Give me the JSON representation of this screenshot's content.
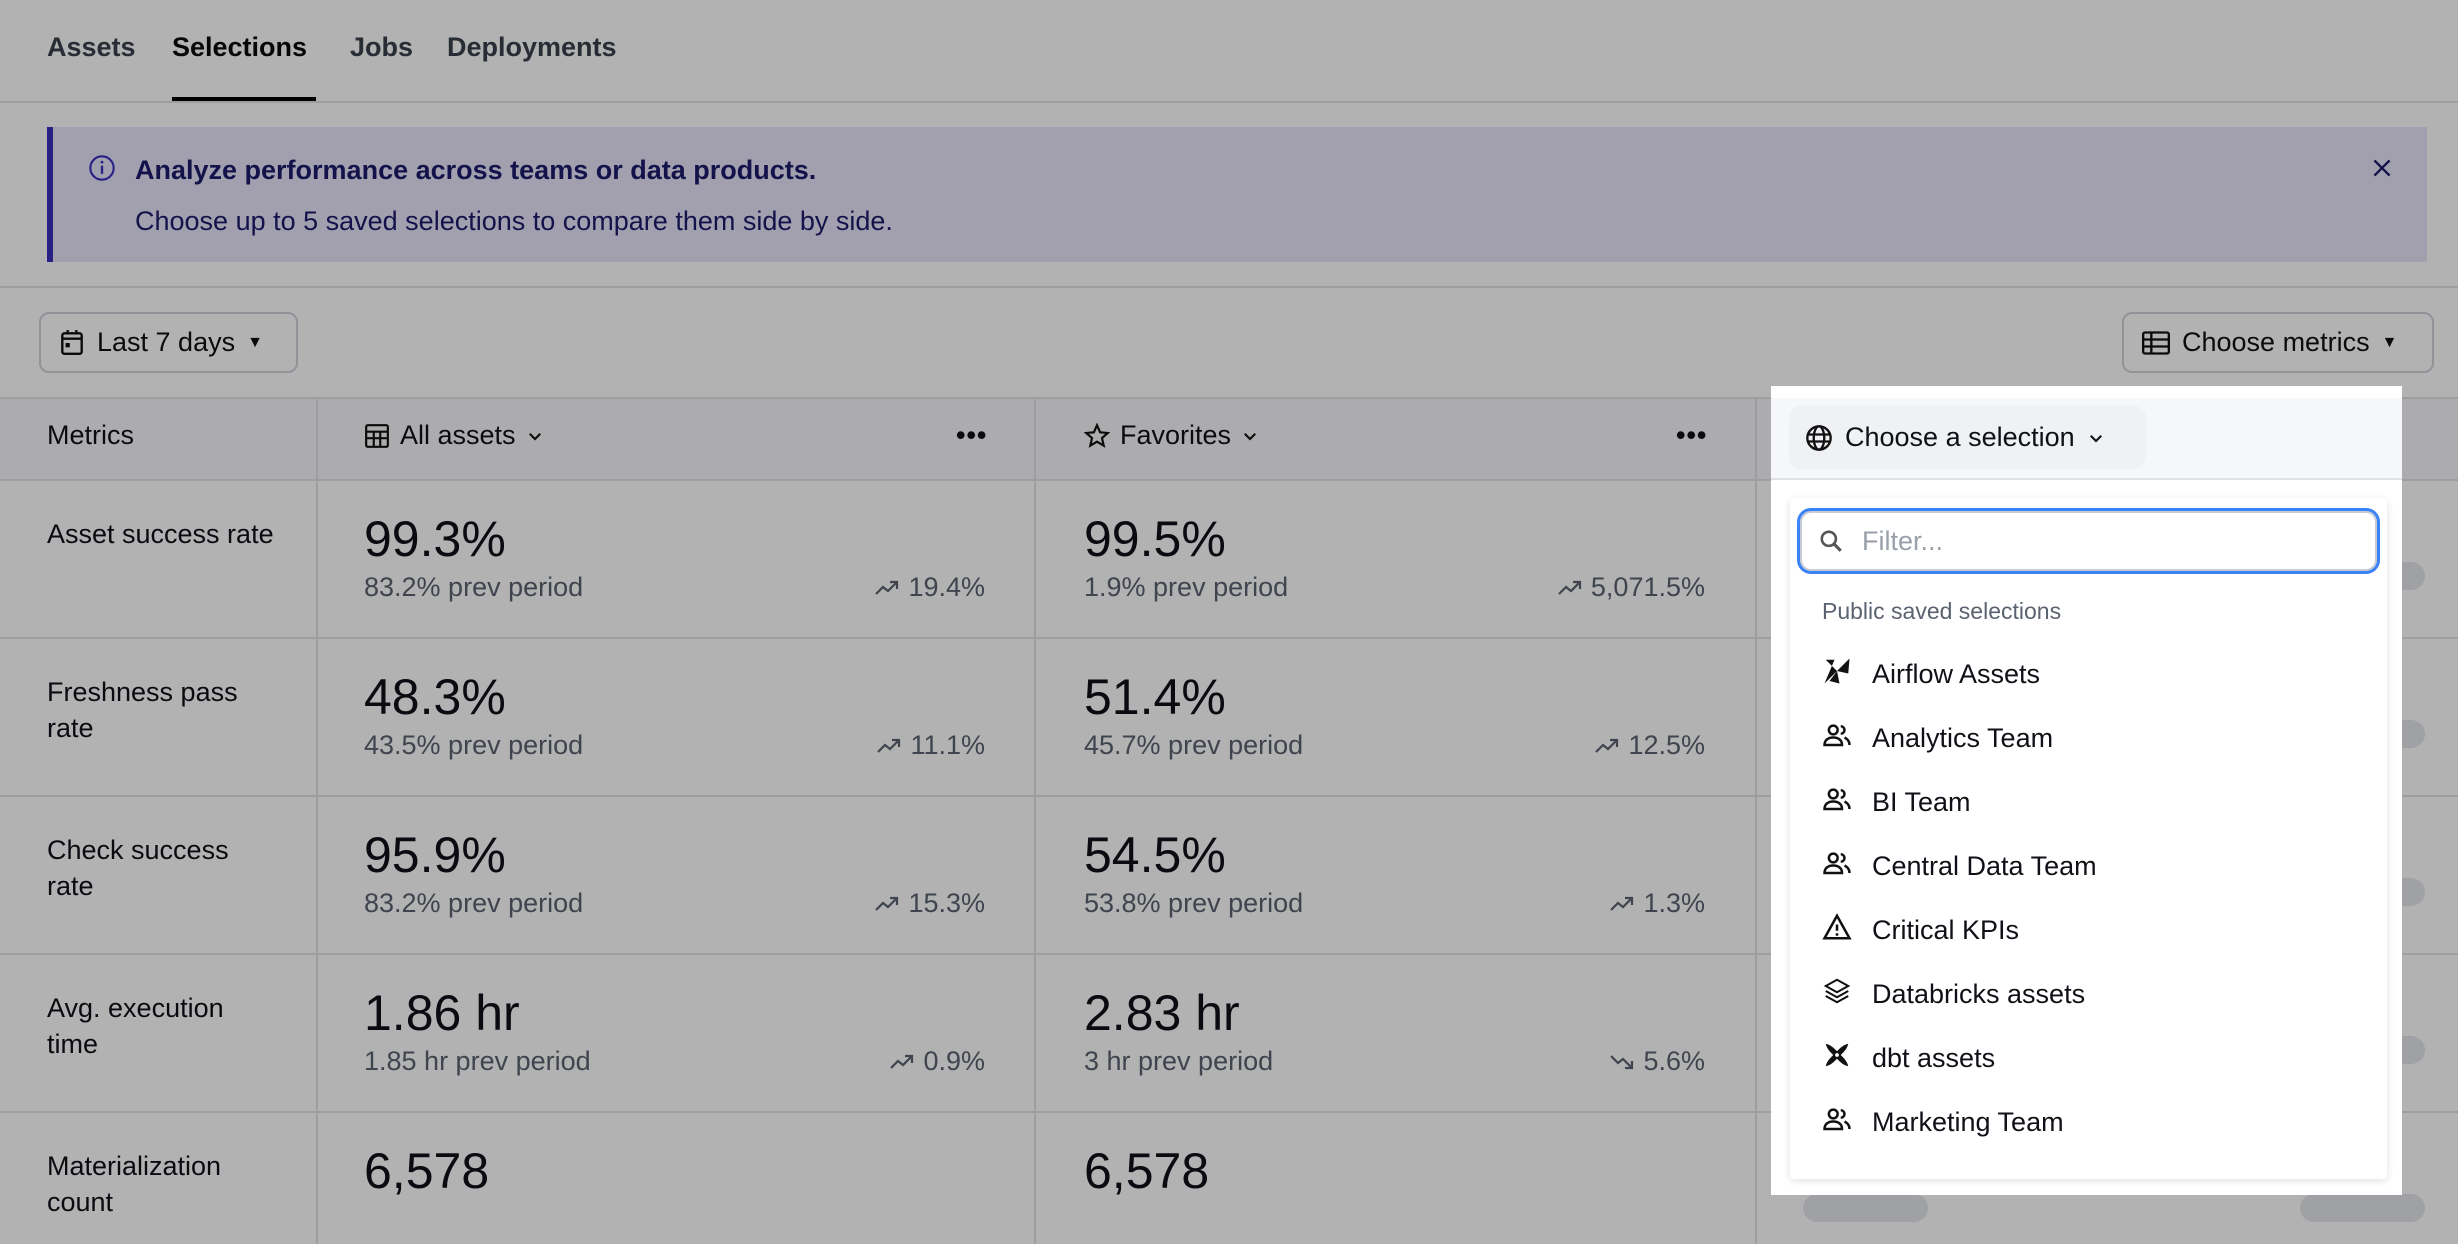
{
  "tabs": [
    {
      "label": "Assets"
    },
    {
      "label": "Selections",
      "active": true
    },
    {
      "label": "Jobs"
    },
    {
      "label": "Deployments"
    }
  ],
  "banner": {
    "title": "Analyze performance across teams or data products.",
    "body": "Choose up to 5 saved selections to compare them side by side.",
    "icon": "info-icon",
    "accent": "#3b2fbf"
  },
  "toolbar": {
    "date_range": "Last 7 days",
    "choose_metrics": "Choose metrics"
  },
  "table": {
    "metrics_header": "Metrics",
    "columns": [
      {
        "label": "All assets",
        "icon": "table-icon"
      },
      {
        "label": "Favorites",
        "icon": "star-icon"
      }
    ],
    "rows": [
      {
        "label": "Asset success rate",
        "cells": [
          {
            "value": "99.3%",
            "prev": "83.2% prev period",
            "change": "19.4%",
            "dir": "up"
          },
          {
            "value": "99.5%",
            "prev": "1.9% prev period",
            "change": "5,071.5%",
            "dir": "up"
          }
        ]
      },
      {
        "label": "Freshness pass rate",
        "cells": [
          {
            "value": "48.3%",
            "prev": "43.5% prev period",
            "change": "11.1%",
            "dir": "up"
          },
          {
            "value": "51.4%",
            "prev": "45.7% prev period",
            "change": "12.5%",
            "dir": "up"
          }
        ]
      },
      {
        "label": "Check success rate",
        "cells": [
          {
            "value": "95.9%",
            "prev": "83.2% prev period",
            "change": "15.3%",
            "dir": "up"
          },
          {
            "value": "54.5%",
            "prev": "53.8% prev period",
            "change": "1.3%",
            "dir": "up"
          }
        ]
      },
      {
        "label": "Avg. execution time",
        "cells": [
          {
            "value": "1.86 hr",
            "prev": "1.85 hr prev period",
            "change": "0.9%",
            "dir": "up"
          },
          {
            "value": "2.83 hr",
            "prev": "3 hr prev period",
            "change": "5.6%",
            "dir": "down"
          }
        ]
      },
      {
        "label": "Materialization count",
        "cells": [
          {
            "value": "6,578"
          },
          {
            "value": "6,578"
          }
        ]
      }
    ]
  },
  "selector": {
    "label": "Choose a selection",
    "filter_placeholder": "Filter...",
    "section": "Public saved selections",
    "items": [
      {
        "label": "Airflow Assets",
        "icon": "airflow-icon"
      },
      {
        "label": "Analytics Team",
        "icon": "team-icon"
      },
      {
        "label": "BI Team",
        "icon": "team-icon"
      },
      {
        "label": "Central Data Team",
        "icon": "team-icon"
      },
      {
        "label": "Critical KPIs",
        "icon": "warning-icon"
      },
      {
        "label": "Databricks assets",
        "icon": "databricks-icon"
      },
      {
        "label": "dbt assets",
        "icon": "dbt-icon"
      },
      {
        "label": "Marketing Team",
        "icon": "team-icon"
      }
    ]
  }
}
